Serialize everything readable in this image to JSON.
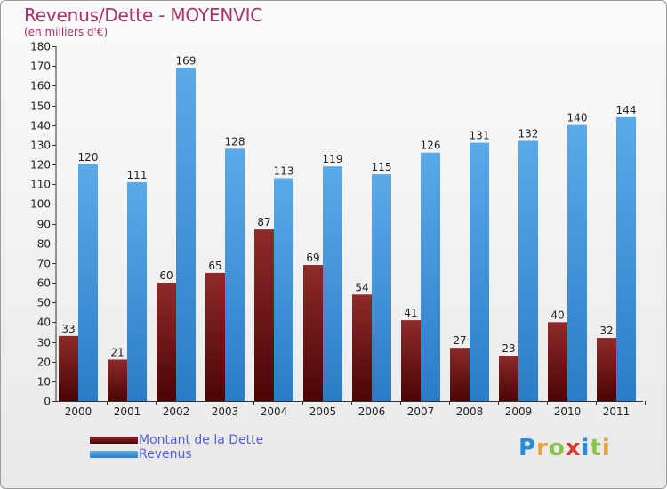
{
  "title": "Revenus/Dette - MOYENVIC",
  "subtitle": "(en milliers d'€)",
  "logo": {
    "text": "Proxiti",
    "letters": [
      {
        "ch": "P",
        "color": "#2a8dd8"
      },
      {
        "ch": "r",
        "color": "#e7a23a"
      },
      {
        "ch": "o",
        "color": "#8bc34a"
      },
      {
        "ch": "x",
        "color": "#e03a2e"
      },
      {
        "ch": "i",
        "color": "#2a8dd8"
      },
      {
        "ch": "t",
        "color": "#8bc34a"
      },
      {
        "ch": "i",
        "color": "#e7a23a"
      }
    ]
  },
  "colors": {
    "dette_top": "#8e2a2a",
    "dette_bottom": "#4a0505",
    "revenus_top": "#5aaaea",
    "revenus_bottom": "#2a7cc6",
    "axis_text": "#222222"
  },
  "chart_data": {
    "type": "bar",
    "categories": [
      "2000",
      "2001",
      "2002",
      "2003",
      "2004",
      "2005",
      "2006",
      "2007",
      "2008",
      "2009",
      "2010",
      "2011"
    ],
    "series": [
      {
        "name": "Montant de la Dette",
        "values": [
          33,
          21,
          60,
          65,
          87,
          69,
          54,
          41,
          27,
          23,
          40,
          32
        ]
      },
      {
        "name": "Revenus",
        "values": [
          120,
          111,
          169,
          128,
          113,
          119,
          115,
          126,
          131,
          132,
          140,
          144
        ]
      }
    ],
    "ylim": [
      0,
      180
    ],
    "ytick_step": 10,
    "grid": false,
    "data_labels": true,
    "legend_position": "bottom-left"
  }
}
